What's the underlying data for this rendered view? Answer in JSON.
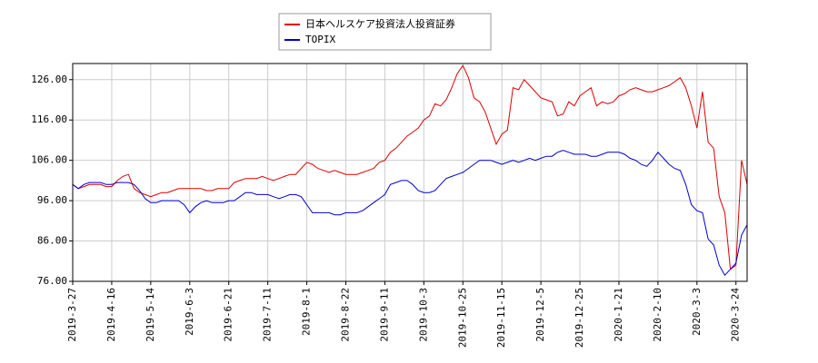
{
  "chart_data": {
    "type": "line",
    "categories": [
      "2019-3-27",
      null,
      null,
      null,
      null,
      null,
      null,
      "2019-4-16",
      null,
      null,
      null,
      null,
      null,
      null,
      "2019-5-14",
      null,
      null,
      null,
      null,
      null,
      null,
      "2019-6-3",
      null,
      null,
      null,
      null,
      null,
      null,
      "2019-6-21",
      null,
      null,
      null,
      null,
      null,
      null,
      "2019-7-11",
      null,
      null,
      null,
      null,
      null,
      null,
      "2019-8-1",
      null,
      null,
      null,
      null,
      null,
      null,
      "2019-8-22",
      null,
      null,
      null,
      null,
      null,
      null,
      "2019-9-11",
      null,
      null,
      null,
      null,
      null,
      null,
      "2019-10-3",
      null,
      null,
      null,
      null,
      null,
      null,
      "2019-10-25",
      null,
      null,
      null,
      null,
      null,
      null,
      "2019-11-15",
      null,
      null,
      null,
      null,
      null,
      null,
      "2019-12-5",
      null,
      null,
      null,
      null,
      null,
      null,
      "2019-12-25",
      null,
      null,
      null,
      null,
      null,
      null,
      "2020-1-21",
      null,
      null,
      null,
      null,
      null,
      null,
      "2020-2-10",
      null,
      null,
      null,
      null,
      null,
      null,
      "2020-3-3",
      null,
      null,
      null,
      null,
      null,
      null,
      "2020-3-24",
      null,
      null
    ],
    "series": [
      {
        "name": "日本ヘルスケア投資法人投資証券",
        "color": "#dd0000",
        "values": [
          100,
          99,
          99.5,
          100,
          100,
          100,
          99.5,
          99.5,
          101,
          102,
          102.5,
          99,
          98,
          97.5,
          97,
          97.5,
          98,
          98,
          98.5,
          99,
          99,
          99,
          99,
          99,
          98.5,
          98.5,
          99,
          99,
          99,
          100.5,
          101,
          101.5,
          101.5,
          101.5,
          102,
          101.5,
          101,
          101.5,
          102,
          102.5,
          102.5,
          104,
          105.5,
          105,
          104,
          103.5,
          103,
          103.5,
          103,
          102.5,
          102.5,
          102.5,
          103,
          103.5,
          104,
          105.5,
          106,
          108,
          109,
          110.5,
          112,
          113,
          114,
          116,
          117,
          120,
          119.5,
          121,
          124,
          127.5,
          129.5,
          126.5,
          121.5,
          120.5,
          118,
          114,
          110,
          112.5,
          113.5,
          124,
          123.5,
          126,
          124.5,
          123,
          121.5,
          121,
          120.5,
          117,
          117.5,
          120.5,
          119.5,
          122,
          123,
          124,
          119.5,
          120.5,
          120,
          120.5,
          122,
          122.5,
          123.5,
          124,
          123.5,
          123,
          123,
          123.5,
          124,
          124.5,
          125.5,
          126.5,
          124,
          119.5,
          114,
          123,
          110.5,
          109,
          97,
          93,
          79,
          80,
          106,
          100
        ]
      },
      {
        "name": "TOPIX",
        "color": "#0000cc",
        "values": [
          100,
          99,
          100,
          100.5,
          100.5,
          100.5,
          100,
          100,
          100.5,
          100.5,
          100.5,
          100,
          98.5,
          96.5,
          95.5,
          95.5,
          96,
          96,
          96,
          96,
          95,
          93,
          94.5,
          95.5,
          96,
          95.5,
          95.5,
          95.5,
          96,
          96,
          97,
          98,
          98,
          97.5,
          97.5,
          97.5,
          97,
          96.5,
          97,
          97.5,
          97.5,
          97,
          95,
          93,
          93,
          93,
          93,
          92.5,
          92.5,
          93,
          93,
          93,
          93.5,
          94.5,
          95.5,
          96.5,
          97.5,
          100,
          100.5,
          101,
          101,
          100,
          98.5,
          98,
          98,
          98.5,
          100,
          101.5,
          102,
          102.5,
          103,
          104,
          105,
          106,
          106,
          106,
          105.5,
          105,
          105.5,
          106,
          105.5,
          106,
          106.5,
          106,
          106.5,
          107,
          107,
          108,
          108.5,
          108,
          107.5,
          107.5,
          107.5,
          107,
          107,
          107.5,
          108,
          108,
          108,
          107.5,
          106.5,
          106,
          105,
          104.5,
          106,
          108,
          106.5,
          105,
          104,
          103.5,
          100,
          95,
          93.5,
          93,
          86.5,
          85,
          80,
          77.5,
          79,
          80.5,
          87.5,
          90
        ]
      }
    ],
    "ylim": [
      76,
      130
    ],
    "yticks": [
      {
        "value": 76,
        "label": "76.00"
      },
      {
        "value": 86,
        "label": "86.00"
      },
      {
        "value": 96,
        "label": "96.00"
      },
      {
        "value": 106,
        "label": "106.00"
      },
      {
        "value": 116,
        "label": "116.00"
      },
      {
        "value": 126,
        "label": "126.00"
      }
    ],
    "grid": true
  }
}
